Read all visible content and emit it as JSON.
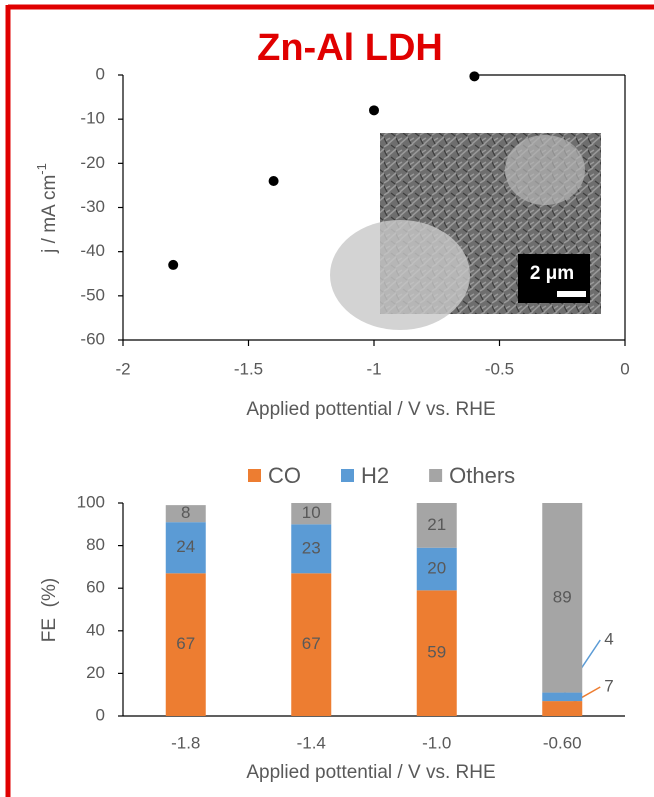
{
  "chart_data": [
    {
      "type": "scatter",
      "title": "Zn-Al LDH",
      "x": [
        -1.8,
        -1.4,
        -1.0,
        -0.6
      ],
      "values": [
        -43,
        -24,
        -8,
        -0.3
      ],
      "color": "#000000",
      "xlim": [
        -2,
        0
      ],
      "xticks": [
        -2,
        -1.5,
        -1,
        -0.5,
        0
      ],
      "ylim": [
        -60,
        0
      ],
      "yticks": [
        0,
        -10,
        -20,
        -30,
        -40,
        -50,
        -60
      ],
      "x_label": "Applied pottential / V vs. RHE",
      "y_label": "j / mA cm",
      "y_label_sup": "-1",
      "inset_label": "2 μm"
    },
    {
      "type": "stacked_bar",
      "categories": [
        "-1.8",
        "-1.4",
        "-1.0",
        "-0.60"
      ],
      "series": [
        {
          "name": "CO",
          "color": "#ED7D31",
          "values": [
            67,
            67,
            59,
            7
          ]
        },
        {
          "name": "H2",
          "color": "#5B9BD5",
          "values": [
            24,
            23,
            20,
            4
          ]
        },
        {
          "name": "Others",
          "color": "#A5A5A5",
          "values": [
            8,
            10,
            21,
            89
          ]
        }
      ],
      "ylim": [
        0,
        100
      ],
      "yticks": [
        0,
        20,
        40,
        60,
        80,
        100
      ],
      "x_label": "Applied pottential / V vs. RHE",
      "y_label": "FE  (%)",
      "legend": "top"
    }
  ]
}
